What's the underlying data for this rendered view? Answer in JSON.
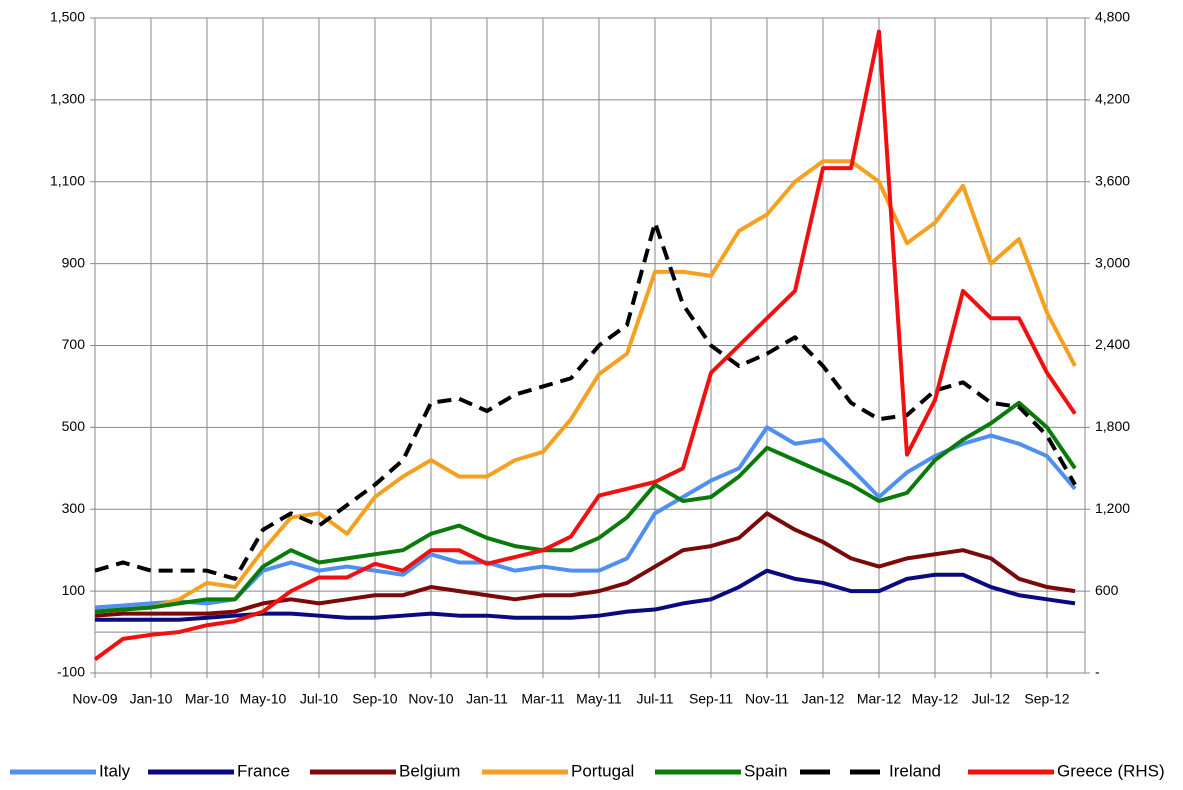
{
  "chart_data": {
    "type": "line",
    "categories": [
      "Nov-09",
      null,
      "Jan-10",
      null,
      "Mar-10",
      null,
      "May-10",
      null,
      "Jul-10",
      null,
      "Sep-10",
      null,
      "Nov-10",
      null,
      "Jan-11",
      null,
      "Mar-11",
      null,
      "May-11",
      null,
      "Jul-11",
      null,
      "Sep-11",
      null,
      "Nov-11",
      null,
      "Jan-12",
      null,
      "Mar-12",
      null,
      "May-12",
      null,
      "Jul-12",
      null,
      "Sep-12",
      null
    ],
    "ylim": [
      -100,
      1500
    ],
    "yticks": [
      -100,
      100,
      300,
      500,
      700,
      900,
      {
        "value": 1100,
        "label": "1,100"
      },
      {
        "value": 1300,
        "label": "1,300"
      },
      {
        "value": 1500,
        "label": "1,500"
      }
    ],
    "y2lim": [
      0,
      4800
    ],
    "y2ticks": [
      {
        "value": 0,
        "label": "-"
      },
      600,
      {
        "value": 1200,
        "label": "1,200"
      },
      {
        "value": 1800,
        "label": "1,800"
      },
      {
        "value": 2400,
        "label": "2,400"
      },
      {
        "value": 3000,
        "label": "3,000"
      },
      {
        "value": 3600,
        "label": "3,600"
      },
      {
        "value": 4200,
        "label": "4,200"
      },
      {
        "value": 4800,
        "label": "4,800"
      }
    ],
    "grid": true,
    "legend": "bottom",
    "series": [
      {
        "name": "Italy",
        "color": "#4f8ff0",
        "values": [
          60,
          65,
          70,
          75,
          70,
          80,
          150,
          170,
          150,
          160,
          150,
          140,
          190,
          170,
          170,
          150,
          160,
          150,
          150,
          180,
          290,
          330,
          370,
          400,
          500,
          460,
          470,
          400,
          330,
          390,
          430,
          460,
          480,
          460,
          430,
          350
        ]
      },
      {
        "name": "France",
        "color": "#0a0a80",
        "values": [
          30,
          30,
          30,
          30,
          35,
          40,
          45,
          45,
          40,
          35,
          35,
          40,
          45,
          40,
          40,
          35,
          35,
          35,
          40,
          50,
          55,
          70,
          80,
          110,
          150,
          130,
          120,
          100,
          100,
          130,
          140,
          140,
          110,
          90,
          80,
          70
        ]
      },
      {
        "name": "Belgium",
        "color": "#7a0a0a",
        "values": [
          40,
          45,
          45,
          45,
          45,
          50,
          70,
          80,
          70,
          80,
          90,
          90,
          110,
          100,
          90,
          80,
          90,
          90,
          100,
          120,
          160,
          200,
          210,
          230,
          290,
          250,
          220,
          180,
          160,
          180,
          190,
          200,
          180,
          130,
          110,
          100
        ]
      },
      {
        "name": "Portugal",
        "color": "#f5a020",
        "values": [
          50,
          55,
          60,
          80,
          120,
          110,
          200,
          280,
          290,
          240,
          330,
          380,
          420,
          380,
          380,
          420,
          440,
          520,
          630,
          680,
          880,
          880,
          870,
          980,
          1020,
          1100,
          1150,
          1150,
          1100,
          950,
          1000,
          1090,
          900,
          960,
          780,
          650
        ]
      },
      {
        "name": "Spain",
        "color": "#0a7a0a",
        "values": [
          50,
          55,
          60,
          70,
          80,
          80,
          160,
          200,
          170,
          180,
          190,
          200,
          240,
          260,
          230,
          210,
          200,
          200,
          230,
          280,
          360,
          320,
          330,
          380,
          450,
          420,
          390,
          360,
          320,
          340,
          420,
          470,
          510,
          560,
          500,
          400
        ]
      },
      {
        "name": "Ireland",
        "color": "#000000",
        "dashed": true,
        "values": [
          150,
          170,
          150,
          150,
          150,
          130,
          250,
          290,
          260,
          310,
          360,
          420,
          560,
          570,
          540,
          580,
          600,
          620,
          700,
          750,
          1000,
          800,
          700,
          650,
          680,
          720,
          650,
          560,
          520,
          530,
          590,
          610,
          560,
          550,
          480,
          360
        ]
      },
      {
        "name": "Greece (RHS)",
        "color": "#f01010",
        "axis": "y2",
        "values": [
          100,
          250,
          280,
          300,
          350,
          380,
          450,
          600,
          700,
          700,
          800,
          750,
          900,
          900,
          800,
          850,
          900,
          1000,
          1300,
          1350,
          1400,
          1500,
          2200,
          2400,
          2600,
          2800,
          3700,
          3700,
          4700,
          1600,
          2000,
          2800,
          2600,
          2600,
          2200,
          1900
        ]
      }
    ]
  }
}
